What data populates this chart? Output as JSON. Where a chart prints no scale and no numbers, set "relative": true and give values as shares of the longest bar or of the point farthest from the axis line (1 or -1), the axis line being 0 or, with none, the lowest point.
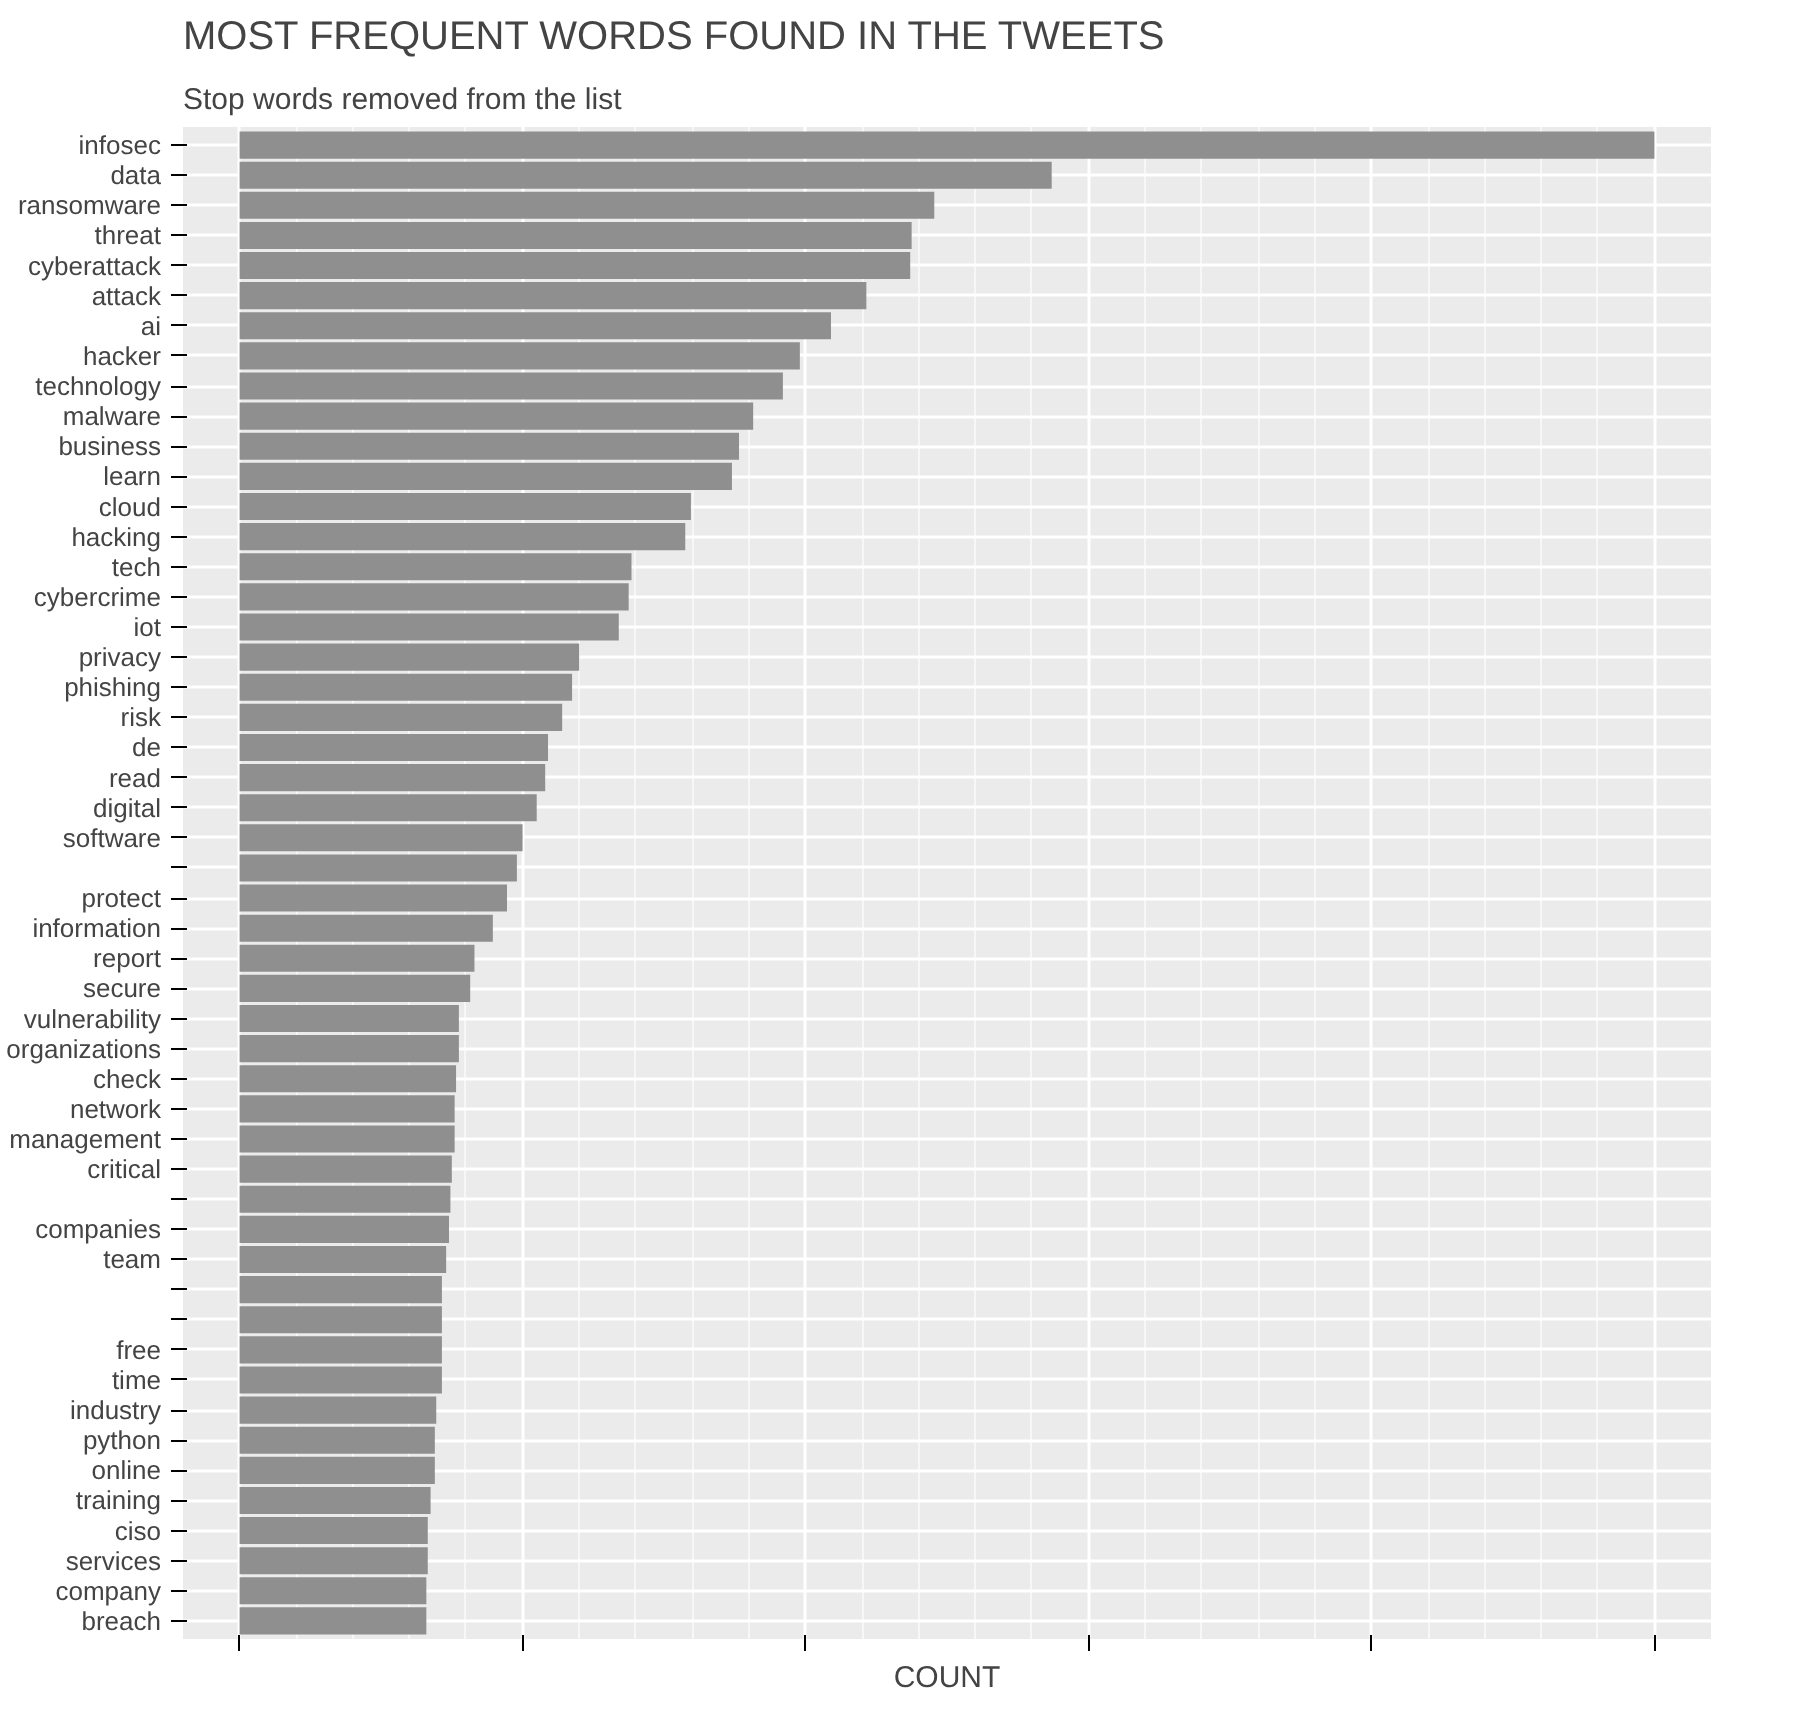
{
  "chart_data": {
    "type": "bar",
    "orientation": "horizontal",
    "relative": true,
    "title": "MOST FREQUENT WORDS FOUND IN THE TWEETS",
    "subtitle": "Stop words removed from the list",
    "xlabel": "COUNT",
    "grid": true,
    "color": "#8f8f8f",
    "categories": [
      "infosec",
      "data",
      "ransomware",
      "threat",
      "cyberattack",
      "attack",
      "ai",
      "hacker",
      "technology",
      "malware",
      "business",
      "learn",
      "cloud",
      "hacking",
      "tech",
      "cybercrime",
      "iot",
      "privacy",
      "phishing",
      "risk",
      "de",
      "read",
      "digital",
      "software",
      null,
      "protect",
      "information",
      "report",
      "secure",
      "vulnerability",
      "organizations",
      "check",
      "network",
      "management",
      "critical",
      null,
      "companies",
      "team",
      null,
      null,
      "free",
      "time",
      "industry",
      "python",
      "online",
      "training",
      "ciso",
      "services",
      "company",
      "breach"
    ],
    "values": [
      1,
      0.574,
      0.491,
      0.475,
      0.474,
      0.443,
      0.418,
      0.396,
      0.384,
      0.363,
      0.353,
      0.348,
      0.319,
      0.315,
      0.277,
      0.275,
      0.268,
      0.24,
      0.235,
      0.228,
      0.218,
      0.216,
      0.21,
      0.2,
      0.196,
      0.189,
      0.179,
      0.166,
      0.163,
      0.155,
      0.155,
      0.153,
      0.152,
      0.152,
      0.15,
      0.149,
      0.148,
      0.146,
      0.143,
      0.143,
      0.143,
      0.143,
      0.139,
      0.138,
      0.138,
      0.135,
      0.133,
      0.133,
      0.132,
      0.132
    ]
  }
}
